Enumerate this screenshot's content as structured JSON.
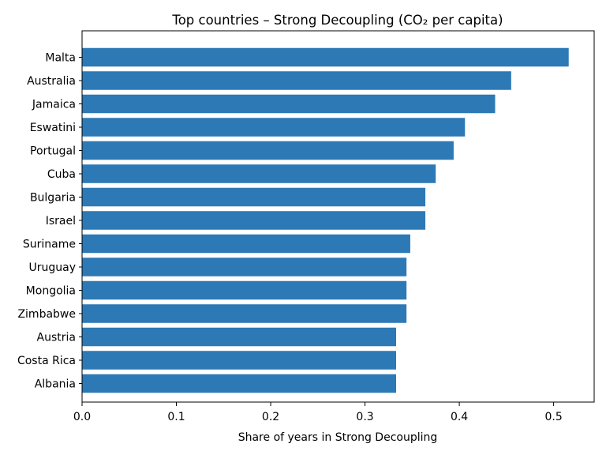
{
  "chart_data": {
    "type": "bar",
    "orientation": "horizontal",
    "title": "Top countries – Strong Decoupling (CO₂ per capita)",
    "xlabel": "Share of years in Strong Decoupling",
    "ylabel": "",
    "xlim": [
      0,
      0.543
    ],
    "xticks": [
      "0.0",
      "0.1",
      "0.2",
      "0.3",
      "0.4",
      "0.5"
    ],
    "categories": [
      "Malta",
      "Australia",
      "Jamaica",
      "Eswatini",
      "Portugal",
      "Cuba",
      "Bulgaria",
      "Israel",
      "Suriname",
      "Uruguay",
      "Mongolia",
      "Zimbabwe",
      "Austria",
      "Costa Rica",
      "Albania"
    ],
    "values": [
      0.516,
      0.455,
      0.438,
      0.406,
      0.394,
      0.375,
      0.364,
      0.364,
      0.348,
      0.344,
      0.344,
      0.344,
      0.333,
      0.333,
      0.333
    ],
    "bar_color": "#2c79b5",
    "grid": false,
    "legend": "none"
  }
}
